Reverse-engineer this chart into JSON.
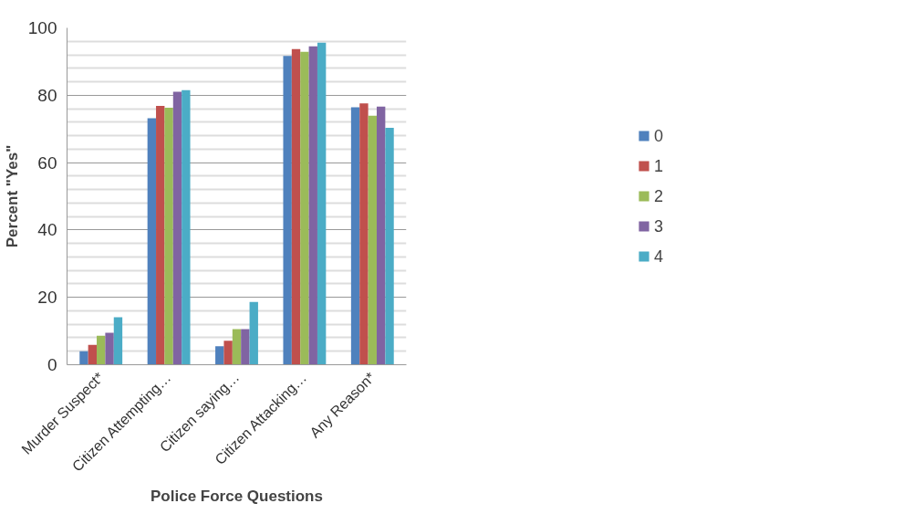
{
  "chart_data": {
    "type": "bar",
    "xlabel": "Police Force Questions",
    "ylabel": "Percent \"Yes\"",
    "categories": [
      "Murder Suspect*",
      "Citizen Attempting…",
      "Citizen saying…",
      "Citizen Attacking…",
      "Any Reason*"
    ],
    "series": [
      {
        "name": "0",
        "color": "#4f81bd",
        "values": [
          4.0,
          73.2,
          5.5,
          91.7,
          76.4
        ]
      },
      {
        "name": "1",
        "color": "#c0504d",
        "values": [
          5.9,
          76.8,
          7.1,
          93.7,
          77.6
        ]
      },
      {
        "name": "2",
        "color": "#9bbb59",
        "values": [
          8.6,
          76.3,
          10.6,
          92.9,
          73.9
        ]
      },
      {
        "name": "3",
        "color": "#8064a2",
        "values": [
          9.5,
          81.0,
          10.6,
          94.5,
          76.6
        ]
      },
      {
        "name": "4",
        "color": "#4bacc6",
        "values": [
          14.1,
          81.5,
          18.6,
          95.6,
          70.3
        ]
      }
    ],
    "ylim": [
      0,
      100
    ],
    "yticks": [
      0,
      20,
      40,
      60,
      80,
      100
    ],
    "grid": "y",
    "legend": "right"
  }
}
